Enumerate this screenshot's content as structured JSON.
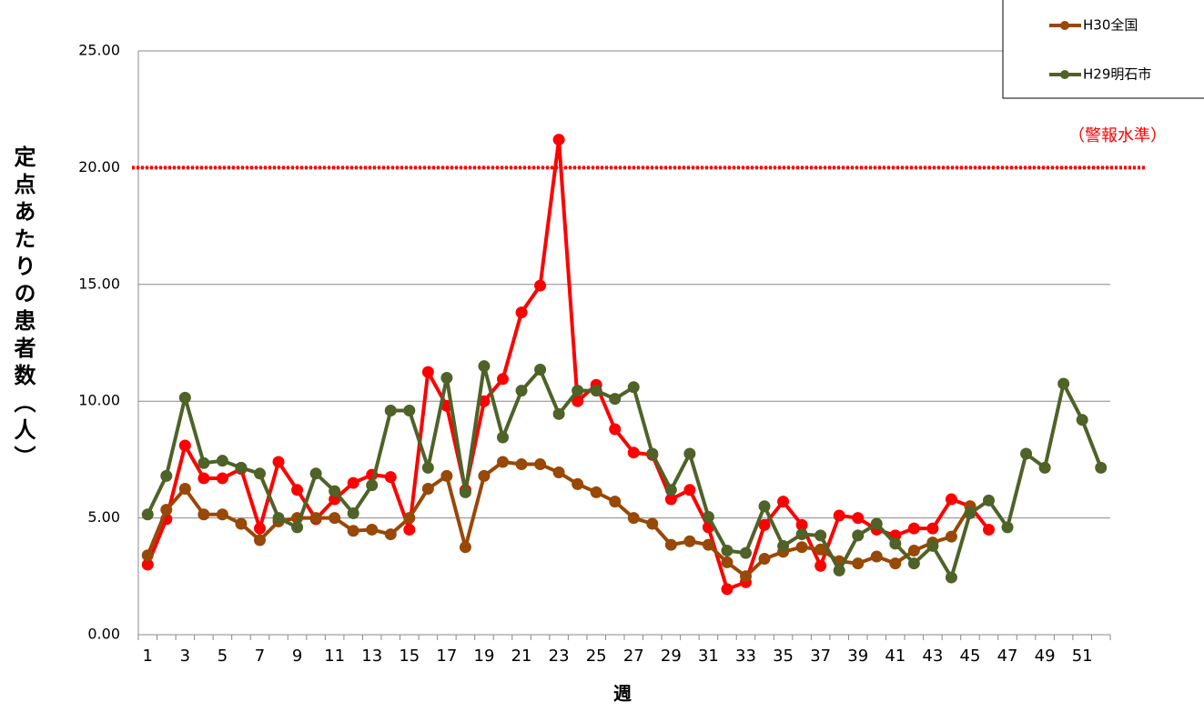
{
  "chart_data": {
    "type": "line",
    "y_axis_label": "定点あたりの患者数（人）",
    "x_axis_label": "週",
    "categories": [
      1,
      null,
      3,
      null,
      5,
      null,
      7,
      null,
      9,
      null,
      11,
      null,
      13,
      null,
      15,
      null,
      17,
      null,
      19,
      null,
      21,
      null,
      23,
      null,
      25,
      null,
      27,
      null,
      29,
      null,
      31,
      null,
      33,
      null,
      35,
      null,
      37,
      null,
      39,
      null,
      41,
      null,
      43,
      null,
      45,
      null,
      47,
      null,
      49,
      null,
      51,
      null
    ],
    "series": [
      {
        "color": "#ff0000",
        "values": [
          3.0,
          4.95,
          8.1,
          6.7,
          6.7,
          7.1,
          4.55,
          7.4,
          6.2,
          4.95,
          5.8,
          6.5,
          6.85,
          6.75,
          4.5,
          11.25,
          9.8,
          6.2,
          10.0,
          10.95,
          13.8,
          14.95,
          21.2,
          10.0,
          10.7,
          8.8,
          7.8,
          7.7,
          5.8,
          6.2,
          4.6,
          1.95,
          2.25,
          4.7,
          5.7,
          4.7,
          2.95,
          5.1,
          5.0,
          4.5,
          4.25,
          4.55,
          4.55,
          5.8,
          5.5,
          4.5,
          null,
          null,
          null,
          null,
          null,
          null
        ]
      },
      {
        "name": "H30全国",
        "color": "#984807",
        "values": [
          3.4,
          5.35,
          6.25,
          5.15,
          5.15,
          4.75,
          4.05,
          4.85,
          5.0,
          5.0,
          5.0,
          4.45,
          4.5,
          4.3,
          5.0,
          6.25,
          6.8,
          3.75,
          6.8,
          7.4,
          7.3,
          7.3,
          6.95,
          6.45,
          6.1,
          5.7,
          5.0,
          4.75,
          3.85,
          4.0,
          3.85,
          3.1,
          2.5,
          3.25,
          3.55,
          3.75,
          3.65,
          3.15,
          3.05,
          3.35,
          3.05,
          3.6,
          3.95,
          4.2,
          5.5,
          null,
          null,
          null,
          null,
          null,
          null,
          null
        ]
      },
      {
        "name": "H29明石市",
        "color": "#4f6228",
        "values": [
          5.15,
          6.8,
          10.15,
          7.35,
          7.45,
          7.15,
          6.9,
          5.0,
          4.6,
          6.9,
          6.15,
          5.2,
          6.4,
          9.6,
          9.6,
          7.15,
          11.0,
          6.1,
          11.5,
          8.45,
          10.45,
          11.35,
          9.45,
          10.45,
          10.45,
          10.1,
          10.6,
          7.75,
          6.2,
          7.75,
          5.05,
          3.6,
          3.5,
          5.5,
          3.8,
          4.3,
          4.25,
          2.75,
          4.25,
          4.75,
          3.9,
          3.05,
          3.8,
          2.45,
          5.2,
          5.75,
          4.6,
          7.75,
          7.15,
          10.75,
          9.2,
          7.15
        ]
      }
    ],
    "alert_line": {
      "value": 20,
      "label": "（警報水準）",
      "color": "#ff0000"
    },
    "ylim": [
      0,
      25
    ],
    "yticks": [
      {
        "value": 0,
        "label": "0.00"
      },
      {
        "value": 5,
        "label": "5.00"
      },
      {
        "value": 10,
        "label": "10.00"
      },
      {
        "value": 15,
        "label": "15.00"
      },
      {
        "value": 20,
        "label": "20.00"
      },
      {
        "value": 25,
        "label": "25.00"
      }
    ],
    "grid": true
  }
}
